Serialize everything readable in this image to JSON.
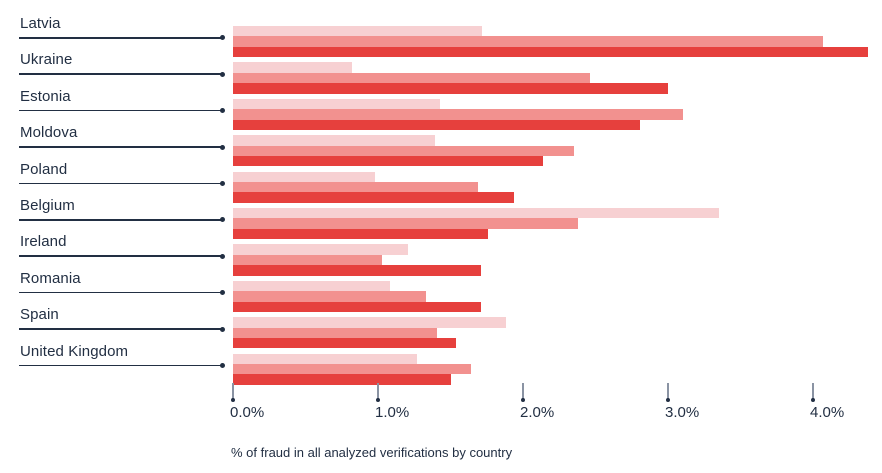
{
  "chart_data": {
    "type": "bar",
    "orientation": "horizontal",
    "caption": "% of fraud in all analyzed verifications by country",
    "categories": [
      "Latvia",
      "Ukraine",
      "Estonia",
      "Moldova",
      "Poland",
      "Belgium",
      "Ireland",
      "Romania",
      "Spain",
      "United Kingdom"
    ],
    "series": [
      {
        "name": "series-1-light",
        "color": "#F7D0D2",
        "values": [
          1.72,
          0.82,
          1.43,
          1.39,
          0.98,
          3.35,
          1.21,
          1.08,
          1.88,
          1.27
        ]
      },
      {
        "name": "series-2-medium",
        "color": "#F2918F",
        "values": [
          4.07,
          2.46,
          3.1,
          2.35,
          1.69,
          2.38,
          1.03,
          1.33,
          1.41,
          1.64
        ]
      },
      {
        "name": "series-3-dark",
        "color": "#E6403D",
        "values": [
          4.38,
          3.0,
          2.81,
          2.14,
          1.94,
          1.76,
          1.71,
          1.71,
          1.54,
          1.5
        ]
      }
    ],
    "x_axis": {
      "min": 0,
      "max": 4.4,
      "tick_values": [
        0,
        1,
        2,
        3,
        4
      ],
      "tick_labels": [
        "0.0%",
        "1.0%",
        "2.0%",
        "3.0%",
        "4.0%"
      ]
    },
    "legend": "none",
    "grid": "off",
    "text_color": "#222F43",
    "tick_stem_color": "#8A93A3"
  }
}
